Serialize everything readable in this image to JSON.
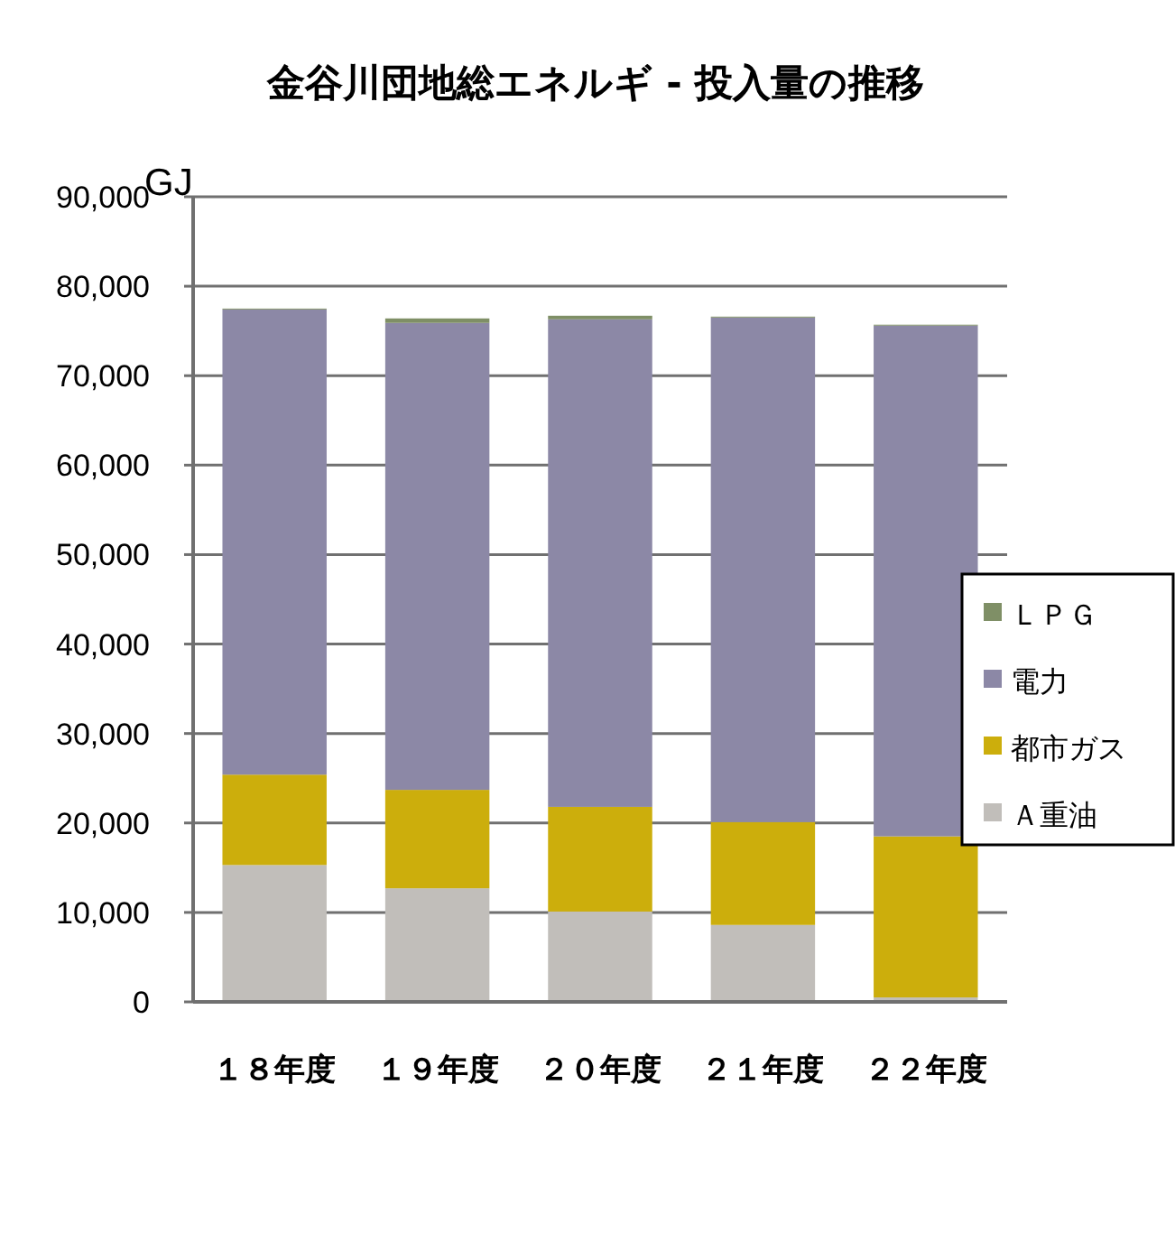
{
  "chart_data": {
    "type": "bar",
    "title": "金谷川団地総エネルギ - 投入量の推移",
    "ylabel": "GJ",
    "categories": [
      "１８年度",
      "１９年度",
      "２０年度",
      "２１年度",
      "２２年度"
    ],
    "stacked": true,
    "series": [
      {
        "name": "Ａ重油",
        "color": "#c1beba",
        "values": [
          15300,
          12700,
          10100,
          8600,
          500
        ]
      },
      {
        "name": "都市ガス",
        "color": "#ccae0c",
        "values": [
          10100,
          11000,
          11700,
          11500,
          18000
        ]
      },
      {
        "name": "電力",
        "color": "#8c88a6",
        "values": [
          52000,
          52200,
          54500,
          56400,
          57100
        ]
      },
      {
        "name": "ＬＰＧ",
        "color": "#7f8f66",
        "values": [
          100,
          500,
          400,
          100,
          100
        ]
      }
    ],
    "ylim": [
      0,
      90000
    ],
    "yticks": [
      0,
      {
        "value": 10000,
        "label": "10,000"
      },
      {
        "value": 20000,
        "label": "20,000"
      },
      {
        "value": 30000,
        "label": "30,000"
      },
      {
        "value": 40000,
        "label": "40,000"
      },
      {
        "value": 50000,
        "label": "50,000"
      },
      {
        "value": 60000,
        "label": "60,000"
      },
      {
        "value": 70000,
        "label": "70,000"
      },
      {
        "value": 80000,
        "label": "80,000"
      },
      {
        "value": 90000,
        "label": "90,000"
      }
    ],
    "grid": "y",
    "legend": "right"
  }
}
